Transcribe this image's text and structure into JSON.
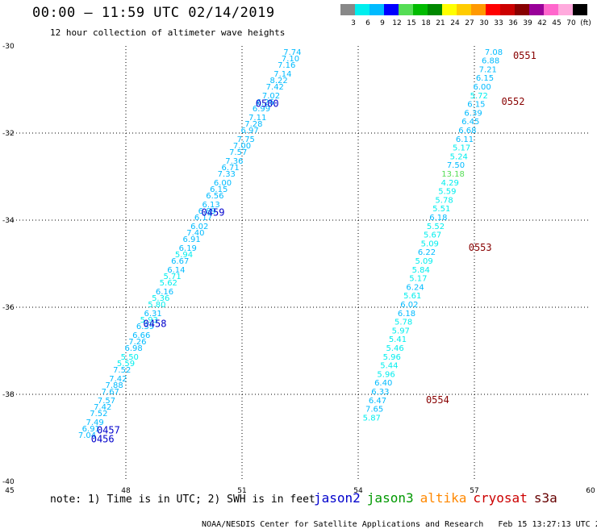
{
  "header": {
    "title": "00:00 – 11:59 UTC 02/14/2019",
    "subtitle": "12 hour collection of altimeter wave heights"
  },
  "colorbar": {
    "labels": [
      "3",
      "6",
      "9",
      "12",
      "15",
      "18",
      "21",
      "24",
      "27",
      "30",
      "33",
      "36",
      "39",
      "42",
      "45",
      "70",
      "(ft)"
    ],
    "colors": [
      "#888888",
      "#00eeee",
      "#00bbff",
      "#0000ff",
      "#55dd55",
      "#00bb00",
      "#008800",
      "#ffff00",
      "#ffcc00",
      "#ff9900",
      "#ff0000",
      "#cc0000",
      "#880000",
      "#990099",
      "#ff66cc",
      "#ffaadd",
      "#000000"
    ]
  },
  "footer": {
    "note": "note: 1) Time is in UTC; 2) SWH is in feet",
    "credit": "NOAA/NESDIS Center for Satellite Applications and Research",
    "timestamp": "Feb 15 13:27:13 UTC 2019"
  },
  "missions": [
    {
      "name": "jason2",
      "color": "#0000cc"
    },
    {
      "name": "jason3",
      "color": "#009900"
    },
    {
      "name": "altika",
      "color": "#ff8800"
    },
    {
      "name": "cryosat",
      "color": "#cc0000"
    },
    {
      "name": "s3a",
      "color": "#660000"
    }
  ],
  "chart_data": {
    "type": "scatter",
    "xlim": [
      45,
      60
    ],
    "ylim": [
      -40,
      -30
    ],
    "x_ticks": [
      45,
      48,
      51,
      54,
      57,
      60
    ],
    "y_ticks": [
      -30,
      -32,
      -34,
      -36,
      -38,
      -40
    ],
    "grid": true,
    "series": [
      {
        "name": "jason2",
        "color": "#0000cc",
        "points": [
          {
            "x": 52.3,
            "y": -30.2,
            "v": "7.74"
          },
          {
            "x": 52.25,
            "y": -30.35,
            "v": "7.10"
          },
          {
            "x": 52.15,
            "y": -30.5,
            "v": "7.16"
          },
          {
            "x": 52.05,
            "y": -30.7,
            "v": "7.14"
          },
          {
            "x": 51.95,
            "y": -30.85,
            "v": "8.22"
          },
          {
            "x": 51.85,
            "y": -31.0,
            "v": "7.42"
          },
          {
            "x": 51.75,
            "y": -31.2,
            "v": "7.02"
          },
          {
            "x": 51.6,
            "y": -31.35,
            "v": "6.26"
          },
          {
            "x": 51.5,
            "y": -31.5,
            "v": "6.99"
          },
          {
            "x": 51.4,
            "y": -31.7,
            "v": "7.11"
          },
          {
            "x": 51.3,
            "y": -31.85,
            "v": "7.28"
          },
          {
            "x": 51.2,
            "y": -32.0,
            "v": "6.97"
          },
          {
            "x": 51.1,
            "y": -32.2,
            "v": "7.75"
          },
          {
            "x": 51.0,
            "y": -32.35,
            "v": "7.00"
          },
          {
            "x": 50.9,
            "y": -32.5,
            "v": "7.57"
          },
          {
            "x": 50.8,
            "y": -32.7,
            "v": "7.36"
          },
          {
            "x": 50.7,
            "y": -32.85,
            "v": "6.71"
          },
          {
            "x": 50.6,
            "y": -33.0,
            "v": "7.33"
          },
          {
            "x": 50.5,
            "y": -33.2,
            "v": "6.00"
          },
          {
            "x": 50.4,
            "y": -33.35,
            "v": "6.15"
          },
          {
            "x": 50.3,
            "y": -33.5,
            "v": "6.56"
          },
          {
            "x": 50.2,
            "y": -33.7,
            "v": "6.13"
          },
          {
            "x": 50.1,
            "y": -33.85,
            "v": "6.89"
          },
          {
            "x": 50.0,
            "y": -34.0,
            "v": "6.17"
          },
          {
            "x": 49.9,
            "y": -34.2,
            "v": "6.02"
          },
          {
            "x": 49.8,
            "y": -34.35,
            "v": "7.40"
          },
          {
            "x": 49.7,
            "y": -34.5,
            "v": "6.91"
          },
          {
            "x": 49.6,
            "y": -34.7,
            "v": "6.19"
          },
          {
            "x": 49.5,
            "y": -34.85,
            "v": "5.94"
          },
          {
            "x": 49.4,
            "y": -35.0,
            "v": "6.67"
          },
          {
            "x": 49.3,
            "y": -35.2,
            "v": "6.14"
          },
          {
            "x": 49.2,
            "y": -35.35,
            "v": "5.71"
          },
          {
            "x": 49.1,
            "y": -35.5,
            "v": "5.62"
          },
          {
            "x": 49.0,
            "y": -35.7,
            "v": "6.16"
          },
          {
            "x": 48.9,
            "y": -35.85,
            "v": "5.36"
          },
          {
            "x": 48.8,
            "y": -36.0,
            "v": "5.80"
          },
          {
            "x": 48.7,
            "y": -36.2,
            "v": "6.31"
          },
          {
            "x": 48.6,
            "y": -36.35,
            "v": "5.93"
          },
          {
            "x": 48.5,
            "y": -36.5,
            "v": "6.39"
          },
          {
            "x": 48.4,
            "y": -36.7,
            "v": "6.66"
          },
          {
            "x": 48.3,
            "y": -36.85,
            "v": "7.26"
          },
          {
            "x": 48.2,
            "y": -37.0,
            "v": "6.98"
          },
          {
            "x": 48.1,
            "y": -37.2,
            "v": "5.50"
          },
          {
            "x": 48.0,
            "y": -37.35,
            "v": "5.59"
          },
          {
            "x": 47.9,
            "y": -37.5,
            "v": "7.52"
          },
          {
            "x": 47.8,
            "y": -37.7,
            "v": "7.42"
          },
          {
            "x": 47.7,
            "y": -37.85,
            "v": "7.88"
          },
          {
            "x": 47.6,
            "y": -38.0,
            "v": "7.67"
          },
          {
            "x": 47.5,
            "y": -38.2,
            "v": "7.57"
          },
          {
            "x": 47.4,
            "y": -38.35,
            "v": "7.42"
          },
          {
            "x": 47.3,
            "y": -38.5,
            "v": "7.52"
          },
          {
            "x": 47.2,
            "y": -38.7,
            "v": "7.49"
          },
          {
            "x": 47.1,
            "y": -38.85,
            "v": "6.91"
          },
          {
            "x": 47.0,
            "y": -39.0,
            "v": "7.04"
          }
        ],
        "time_labels": [
          {
            "x": 51.65,
            "y": -31.4,
            "v": "0500"
          },
          {
            "x": 50.25,
            "y": -33.9,
            "v": "0459"
          },
          {
            "x": 48.75,
            "y": -36.45,
            "v": "0458"
          },
          {
            "x": 47.55,
            "y": -38.9,
            "v": "0457"
          },
          {
            "x": 47.4,
            "y": -39.1,
            "v": "0456"
          }
        ]
      },
      {
        "name": "cryosat",
        "color": "#880000",
        "points": [
          {
            "x": 57.5,
            "y": -30.2,
            "v": "7.08"
          },
          {
            "x": 57.42,
            "y": -30.4,
            "v": "6.88"
          },
          {
            "x": 57.35,
            "y": -30.6,
            "v": "7.21"
          },
          {
            "x": 57.27,
            "y": -30.8,
            "v": "6.15"
          },
          {
            "x": 57.2,
            "y": -31.0,
            "v": "6.00"
          },
          {
            "x": 57.12,
            "y": -31.2,
            "v": "5.72"
          },
          {
            "x": 57.05,
            "y": -31.4,
            "v": "6.15"
          },
          {
            "x": 56.97,
            "y": -31.6,
            "v": "6.39"
          },
          {
            "x": 56.9,
            "y": -31.8,
            "v": "6.45"
          },
          {
            "x": 56.82,
            "y": -32.0,
            "v": "6.68"
          },
          {
            "x": 56.75,
            "y": -32.2,
            "v": "6.11"
          },
          {
            "x": 56.67,
            "y": -32.4,
            "v": "5.17"
          },
          {
            "x": 56.6,
            "y": -32.6,
            "v": "5.24"
          },
          {
            "x": 56.52,
            "y": -32.8,
            "v": "7.50"
          },
          {
            "x": 56.45,
            "y": -33.0,
            "v": "13.18"
          },
          {
            "x": 56.37,
            "y": -33.2,
            "v": "4.29"
          },
          {
            "x": 56.3,
            "y": -33.4,
            "v": "5.59"
          },
          {
            "x": 56.22,
            "y": -33.6,
            "v": "5.78"
          },
          {
            "x": 56.15,
            "y": -33.8,
            "v": "5.51"
          },
          {
            "x": 56.07,
            "y": -34.0,
            "v": "6.18"
          },
          {
            "x": 56.0,
            "y": -34.2,
            "v": "5.52"
          },
          {
            "x": 55.92,
            "y": -34.4,
            "v": "5.67"
          },
          {
            "x": 55.85,
            "y": -34.6,
            "v": "5.09"
          },
          {
            "x": 55.77,
            "y": -34.8,
            "v": "6.22"
          },
          {
            "x": 55.7,
            "y": -35.0,
            "v": "5.09"
          },
          {
            "x": 55.62,
            "y": -35.2,
            "v": "5.84"
          },
          {
            "x": 55.55,
            "y": -35.4,
            "v": "5.17"
          },
          {
            "x": 55.47,
            "y": -35.6,
            "v": "6.24"
          },
          {
            "x": 55.4,
            "y": -35.8,
            "v": "5.61"
          },
          {
            "x": 55.32,
            "y": -36.0,
            "v": "6.02"
          },
          {
            "x": 55.25,
            "y": -36.2,
            "v": "6.18"
          },
          {
            "x": 55.17,
            "y": -36.4,
            "v": "5.78"
          },
          {
            "x": 55.1,
            "y": -36.6,
            "v": "5.97"
          },
          {
            "x": 55.02,
            "y": -36.8,
            "v": "5.41"
          },
          {
            "x": 54.95,
            "y": -37.0,
            "v": "5.46"
          },
          {
            "x": 54.87,
            "y": -37.2,
            "v": "5.96"
          },
          {
            "x": 54.8,
            "y": -37.4,
            "v": "5.44"
          },
          {
            "x": 54.72,
            "y": -37.6,
            "v": "5.96"
          },
          {
            "x": 54.65,
            "y": -37.8,
            "v": "6.40"
          },
          {
            "x": 54.57,
            "y": -38.0,
            "v": "6.33"
          },
          {
            "x": 54.5,
            "y": -38.2,
            "v": "6.47"
          },
          {
            "x": 54.42,
            "y": -38.4,
            "v": "7.65"
          },
          {
            "x": 54.35,
            "y": -38.6,
            "v": "5.87"
          }
        ],
        "time_labels": [
          {
            "x": 58.3,
            "y": -30.3,
            "v": "0551"
          },
          {
            "x": 58.0,
            "y": -31.35,
            "v": "0552"
          },
          {
            "x": 57.15,
            "y": -34.7,
            "v": "0553"
          },
          {
            "x": 56.05,
            "y": -38.2,
            "v": "0554"
          }
        ]
      }
    ]
  }
}
